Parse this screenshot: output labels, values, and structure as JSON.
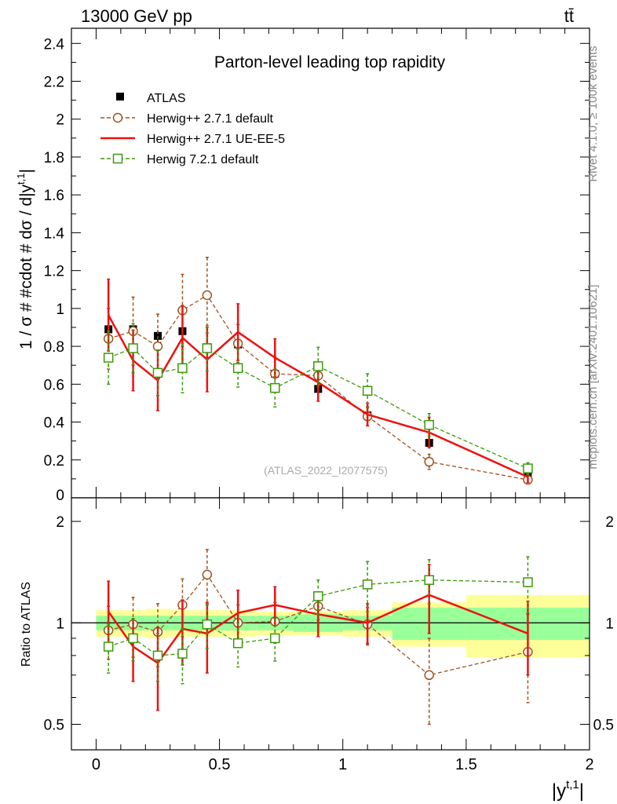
{
  "header": {
    "left": "13000 GeV pp",
    "right": "tt̄"
  },
  "side_labels": {
    "rivet": "Rivet 4.1.0, ≥ 100k events",
    "mcplots": "mcplots.cern.ch [arXiv:2401.10621]"
  },
  "colors": {
    "atlas": "#000000",
    "herwig_pp_default": "#a0521d",
    "herwig_pp_ueee5": "#ee1111",
    "herwig7": "#3a9a0a",
    "band_inner": "#99ff99",
    "band_outer": "#ffff99"
  },
  "chart_data": [
    {
      "type": "scatter",
      "title": "Parton-level leading top rapidity",
      "watermark": "(ATLAS_2022_I2077575)",
      "ylabel": "1 / σ # #cdot # dσ / d|y^{t,1}|",
      "ylabel_parts": [
        "1 / σ # #cdot # dσ / d|y",
        "t,1",
        "|"
      ],
      "xlim": [
        -0.1,
        2.0
      ],
      "ylim": [
        0.0,
        2.48
      ],
      "yticks": [
        0.2,
        0.4,
        0.6,
        0.8,
        1,
        1.2,
        1.4,
        1.6,
        1.8,
        2,
        2.2,
        2.4
      ],
      "ytick_labels": [
        "0.2",
        "0.4",
        "0.6",
        "0.8",
        "1",
        "1.2",
        "1.4",
        "1.6",
        "1.8",
        "2",
        "2.2",
        "2.4"
      ],
      "ytick_label_zero": "0",
      "x": [
        0.05,
        0.15,
        0.25,
        0.35,
        0.45,
        0.575,
        0.725,
        0.9,
        1.1,
        1.35,
        1.75
      ],
      "x_bin_edges": [
        0,
        0.1,
        0.2,
        0.3,
        0.4,
        0.5,
        0.65,
        0.8,
        1.0,
        1.2,
        1.5,
        2.0
      ],
      "legend": [
        "ATLAS",
        "Herwig++ 2.7.1 default",
        "Herwig++ 2.7.1 UE-EE-5",
        "Herwig 7.2.1 default"
      ],
      "series": [
        {
          "name": "ATLAS",
          "style": "data",
          "values": [
            0.89,
            0.89,
            0.855,
            0.88,
            0.795,
            0.81,
            0.655,
            0.575,
            0.435,
            0.29,
            0.115
          ],
          "errors": [
            0.03,
            0.03,
            0.03,
            0.03,
            0.03,
            0.03,
            0.03,
            0.03,
            0.03,
            0.03,
            0.03
          ]
        },
        {
          "name": "Herwig++ 2.7.1 default",
          "style": "circle",
          "values": [
            0.84,
            0.88,
            0.8,
            0.99,
            1.07,
            0.815,
            0.655,
            0.645,
            0.43,
            0.19,
            0.095
          ],
          "errors": [
            0.16,
            0.18,
            0.17,
            0.19,
            0.2,
            0.1,
            0.09,
            0.06,
            0.05,
            0.04,
            0.02
          ]
        },
        {
          "name": "Herwig++ 2.7.1 UE-EE-5",
          "style": "line",
          "values": [
            0.965,
            0.725,
            0.62,
            0.845,
            0.73,
            0.875,
            0.74,
            0.61,
            0.44,
            0.345,
            0.11
          ],
          "errors": [
            0.19,
            0.16,
            0.16,
            0.17,
            0.17,
            0.15,
            0.1,
            0.1,
            0.06,
            0.08,
            0.03
          ]
        },
        {
          "name": "Herwig 7.2.1 default",
          "style": "square",
          "values": [
            0.74,
            0.79,
            0.66,
            0.685,
            0.79,
            0.685,
            0.58,
            0.695,
            0.565,
            0.385,
            0.155
          ],
          "errors": [
            0.14,
            0.13,
            0.12,
            0.13,
            0.12,
            0.1,
            0.1,
            0.1,
            0.09,
            0.06,
            0.03
          ]
        }
      ]
    },
    {
      "type": "scatter",
      "ylabel": "Ratio to ATLAS",
      "xlabel": "|y^{t,1}|",
      "xlabel_parts": [
        "|y",
        "t,1",
        "|"
      ],
      "xlim": [
        -0.1,
        2.0
      ],
      "ylim": [
        0.42,
        2.35
      ],
      "yscale": "log",
      "yticks": [
        0.5,
        1,
        2
      ],
      "ytick_labels": [
        "0.5",
        "1",
        "2"
      ],
      "xticks": [
        0,
        0.5,
        1,
        1.5,
        2
      ],
      "xtick_labels": [
        "0",
        "0.5",
        "1",
        "1.5",
        "2"
      ],
      "x": [
        0.05,
        0.15,
        0.25,
        0.35,
        0.45,
        0.575,
        0.725,
        0.9,
        1.1,
        1.35,
        1.75
      ],
      "band_edges": [
        0,
        0.1,
        0.2,
        0.3,
        0.4,
        0.5,
        0.65,
        0.8,
        1.0,
        1.2,
        1.5,
        2.0
      ],
      "band_inner_half": [
        0.05,
        0.05,
        0.05,
        0.05,
        0.05,
        0.05,
        0.05,
        0.06,
        0.05,
        0.11,
        0.11
      ],
      "band_outer_half": [
        0.09,
        0.09,
        0.1,
        0.09,
        0.09,
        0.09,
        0.08,
        0.08,
        0.09,
        0.15,
        0.21
      ],
      "series": [
        {
          "name": "Herwig++ 2.7.1 default",
          "style": "circle",
          "values": [
            0.95,
            0.99,
            0.94,
            1.13,
            1.39,
            1.0,
            1.01,
            1.12,
            0.99,
            0.7,
            0.82
          ],
          "errors": [
            0.17,
            0.2,
            0.2,
            0.22,
            0.26,
            0.13,
            0.14,
            0.1,
            0.12,
            0.2,
            0.24
          ]
        },
        {
          "name": "Herwig++ 2.7.1 UE-EE-5",
          "style": "line",
          "values": [
            1.08,
            0.85,
            0.76,
            0.96,
            0.93,
            1.07,
            1.13,
            1.06,
            1.0,
            1.21,
            0.93
          ],
          "errors": [
            0.25,
            0.18,
            0.21,
            0.21,
            0.22,
            0.18,
            0.15,
            0.15,
            0.14,
            0.28,
            0.23
          ]
        },
        {
          "name": "Herwig 7.2.1 default",
          "style": "square",
          "values": [
            0.85,
            0.9,
            0.8,
            0.81,
            0.99,
            0.87,
            0.9,
            1.2,
            1.3,
            1.34,
            1.32
          ],
          "errors": [
            0.14,
            0.13,
            0.13,
            0.15,
            0.15,
            0.13,
            0.13,
            0.14,
            0.22,
            0.2,
            0.25
          ]
        }
      ]
    }
  ]
}
